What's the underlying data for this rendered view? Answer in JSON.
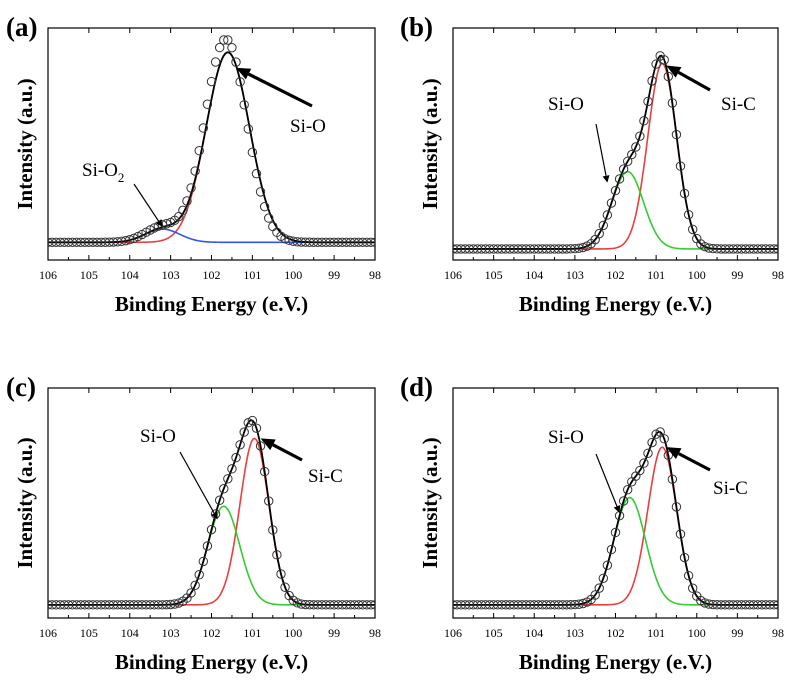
{
  "figure": {
    "panel_count": 4
  },
  "chart_data": [
    {
      "type": "line",
      "panel": "(a)",
      "xlabel": "Binding Energy (e.V.)",
      "ylabel": "Intensity (a.u.)",
      "xlim": [
        106,
        98
      ],
      "x_reversed": true,
      "xticks": [
        "106",
        "105",
        "104",
        "103",
        "102",
        "101",
        "100",
        "99",
        "98"
      ],
      "ylim": [
        0,
        1.05
      ],
      "baseline": 0.08,
      "x_domain": [
        106,
        98
      ],
      "series": [
        {
          "name": "Si-O",
          "color": "#e8403f",
          "peaks": [
            {
              "center": 101.6,
              "height": 0.86,
              "width": 0.75
            }
          ]
        },
        {
          "name": "Si-O2",
          "color": "#3355ee",
          "peaks": [
            {
              "center": 103.2,
              "height": 0.06,
              "width": 0.6
            }
          ]
        },
        {
          "name": "Envelope",
          "color": "#000000",
          "peaks": [
            {
              "center": 101.6,
              "height": 0.86,
              "width": 0.75
            },
            {
              "center": 103.2,
              "height": 0.06,
              "width": 0.6
            }
          ]
        },
        {
          "name": "Measured",
          "color": "#333333",
          "marker": "circle",
          "peaks": [
            {
              "center": 101.65,
              "height": 0.92,
              "width": 0.72
            },
            {
              "center": 103.2,
              "height": 0.07,
              "width": 0.6
            }
          ]
        }
      ],
      "annotations": [
        {
          "text": "Si-O",
          "points_to": {
            "x": 101.4,
            "y": 0.87
          }
        },
        {
          "text_main": "Si-O",
          "text_sub": "2",
          "points_to": {
            "x": 103.2,
            "y": 0.15
          }
        }
      ]
    },
    {
      "type": "line",
      "panel": "(b)",
      "xlabel": "Binding Energy (e.V.)",
      "ylabel": "Intensity (a.u.)",
      "xlim": [
        106,
        98
      ],
      "x_reversed": true,
      "xticks": [
        "106",
        "105",
        "104",
        "103",
        "102",
        "101",
        "100",
        "99",
        "98"
      ],
      "ylim": [
        0,
        1.05
      ],
      "baseline": 0.05,
      "x_domain": [
        106,
        98
      ],
      "series": [
        {
          "name": "Si-C",
          "color": "#e8403f",
          "peaks": [
            {
              "center": 100.85,
              "height": 0.84,
              "width": 0.5
            }
          ]
        },
        {
          "name": "Si-O",
          "color": "#33cc33",
          "peaks": [
            {
              "center": 101.7,
              "height": 0.35,
              "width": 0.55
            }
          ]
        },
        {
          "name": "Envelope",
          "color": "#000000",
          "peaks": [
            {
              "center": 100.85,
              "height": 0.84,
              "width": 0.5
            },
            {
              "center": 101.7,
              "height": 0.35,
              "width": 0.55
            }
          ]
        },
        {
          "name": "Measured",
          "color": "#333333",
          "marker": "circle",
          "peaks": [
            {
              "center": 100.85,
              "height": 0.84,
              "width": 0.5
            },
            {
              "center": 101.7,
              "height": 0.35,
              "width": 0.55
            }
          ]
        }
      ],
      "annotations": [
        {
          "text": "Si-O",
          "points_to": {
            "x": 102.2,
            "y": 0.35
          }
        },
        {
          "text": "Si-C",
          "points_to": {
            "x": 100.75,
            "y": 0.88
          }
        }
      ]
    },
    {
      "type": "line",
      "panel": "(c)",
      "xlabel": "Binding Energy (e.V.)",
      "ylabel": "Intensity (a.u.)",
      "xlim": [
        106,
        98
      ],
      "x_reversed": true,
      "xticks": [
        "106",
        "105",
        "104",
        "103",
        "102",
        "101",
        "100",
        "99",
        "98"
      ],
      "ylim": [
        0,
        1.05
      ],
      "baseline": 0.06,
      "x_domain": [
        106,
        98
      ],
      "series": [
        {
          "name": "Si-C",
          "color": "#e8403f",
          "peaks": [
            {
              "center": 100.95,
              "height": 0.76,
              "width": 0.5
            }
          ]
        },
        {
          "name": "Si-O",
          "color": "#33cc33",
          "peaks": [
            {
              "center": 101.7,
              "height": 0.45,
              "width": 0.55
            }
          ]
        },
        {
          "name": "Envelope",
          "color": "#000000",
          "peaks": [
            {
              "center": 100.95,
              "height": 0.76,
              "width": 0.5
            },
            {
              "center": 101.7,
              "height": 0.45,
              "width": 0.55
            }
          ]
        },
        {
          "name": "Measured",
          "color": "#333333",
          "marker": "circle",
          "peaks": [
            {
              "center": 100.95,
              "height": 0.76,
              "width": 0.5
            },
            {
              "center": 101.7,
              "height": 0.45,
              "width": 0.55
            }
          ]
        }
      ],
      "annotations": [
        {
          "text": "Si-O",
          "points_to": {
            "x": 101.85,
            "y": 0.45
          }
        },
        {
          "text": "Si-C",
          "points_to": {
            "x": 100.8,
            "y": 0.82
          }
        }
      ]
    },
    {
      "type": "line",
      "panel": "(d)",
      "xlabel": "Binding Energy (e.V.)",
      "ylabel": "Intensity (a.u.)",
      "xlim": [
        106,
        98
      ],
      "x_reversed": true,
      "xticks": [
        "106",
        "105",
        "104",
        "103",
        "102",
        "101",
        "100",
        "99",
        "98"
      ],
      "ylim": [
        0,
        1.05
      ],
      "baseline": 0.06,
      "x_domain": [
        106,
        98
      ],
      "series": [
        {
          "name": "Si-C",
          "color": "#e8403f",
          "peaks": [
            {
              "center": 100.85,
              "height": 0.72,
              "width": 0.5
            }
          ]
        },
        {
          "name": "Si-O",
          "color": "#33cc33",
          "peaks": [
            {
              "center": 101.65,
              "height": 0.49,
              "width": 0.55
            }
          ]
        },
        {
          "name": "Envelope",
          "color": "#000000",
          "peaks": [
            {
              "center": 100.85,
              "height": 0.72,
              "width": 0.5
            },
            {
              "center": 101.65,
              "height": 0.49,
              "width": 0.55
            }
          ]
        },
        {
          "name": "Measured",
          "color": "#333333",
          "marker": "circle",
          "peaks": [
            {
              "center": 100.85,
              "height": 0.72,
              "width": 0.5
            },
            {
              "center": 101.65,
              "height": 0.49,
              "width": 0.55
            }
          ]
        }
      ],
      "annotations": [
        {
          "text": "Si-O",
          "points_to": {
            "x": 101.9,
            "y": 0.48
          }
        },
        {
          "text": "Si-C",
          "points_to": {
            "x": 100.75,
            "y": 0.78
          }
        }
      ]
    }
  ]
}
